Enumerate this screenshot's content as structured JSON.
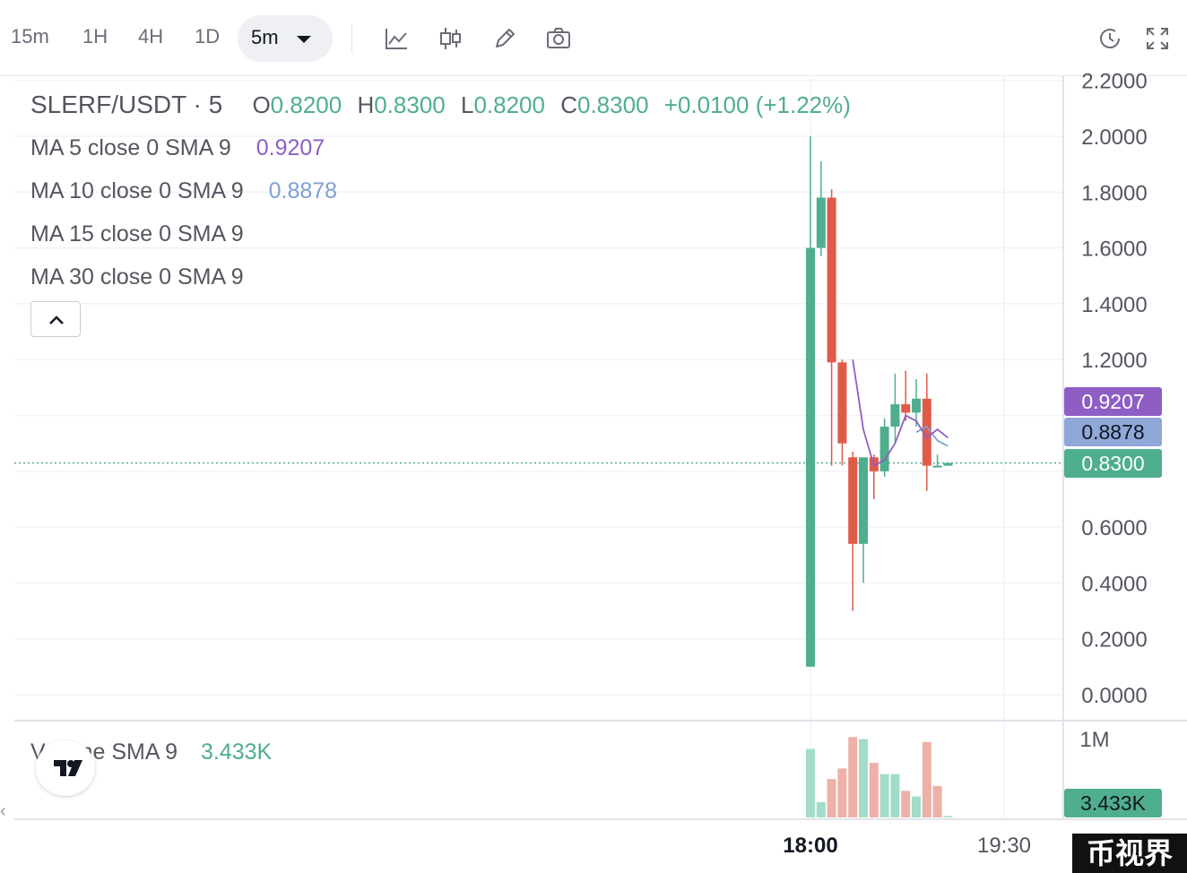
{
  "toolbar": {
    "timeframes": [
      "15m",
      "1H",
      "4H",
      "1D"
    ],
    "active_timeframe": "5m",
    "icons": [
      "line-chart-icon",
      "candles-icon",
      "pencil-icon",
      "camera-icon",
      "clock-icon",
      "fullscreen-icon"
    ]
  },
  "legend": {
    "symbol": "SLERF/USDT · 5",
    "open_label": "O",
    "open": "0.8200",
    "high_label": "H",
    "high": "0.8300",
    "low_label": "L",
    "low": "0.8200",
    "close_label": "C",
    "close": "0.8300",
    "change": "+0.0100 (+1.22%)",
    "ma": [
      {
        "label": "MA 5 close 0 SMA 9",
        "value": "0.9207",
        "color": "#8e5ec5"
      },
      {
        "label": "MA 10 close 0 SMA 9",
        "value": "0.8878",
        "color": "#7e9fd6"
      },
      {
        "label": "MA 15 close 0 SMA 9",
        "value": ""
      },
      {
        "label": "MA 30 close 0 SMA 9",
        "value": ""
      }
    ]
  },
  "volume": {
    "label": "Volume SMA 9",
    "value": "3.433K",
    "axis_label": "1M"
  },
  "price_axis": {
    "ticks": [
      "2.2000",
      "2.0000",
      "1.8000",
      "1.6000",
      "1.4000",
      "1.2000",
      "0.6000",
      "0.4000",
      "0.2000",
      "0.0000"
    ]
  },
  "price_tags": {
    "ma5": "0.9207",
    "ma10": "0.8878",
    "last": "0.8300",
    "volume": "3.433K"
  },
  "time_axis": {
    "ticks": [
      "18:00",
      "19:30"
    ]
  },
  "watermark": "币视界",
  "colors": {
    "up": "#4fae8d",
    "down": "#e05a4a",
    "ma5": "#8e5ec5",
    "ma10": "#7e9fd6",
    "vol_up": "#a3dccb",
    "vol_down": "#eeb1a8"
  },
  "chart_data": {
    "type": "candlestick",
    "interval": "5m",
    "ylim": [
      0,
      2.2
    ],
    "candles": [
      {
        "time": "18:00",
        "open": 0.1,
        "high": 2.0,
        "low": 0.1,
        "close": 1.6
      },
      {
        "open": 1.6,
        "high": 1.91,
        "low": 1.57,
        "close": 1.78
      },
      {
        "open": 1.78,
        "high": 1.81,
        "low": 0.82,
        "close": 1.19
      },
      {
        "open": 1.19,
        "high": 1.2,
        "low": 0.82,
        "close": 0.9
      },
      {
        "open": 0.85,
        "high": 0.87,
        "low": 0.3,
        "close": 0.54
      },
      {
        "open": 0.54,
        "high": 0.84,
        "low": 0.4,
        "close": 0.85
      },
      {
        "open": 0.85,
        "high": 0.86,
        "low": 0.7,
        "close": 0.8
      },
      {
        "open": 0.8,
        "high": 0.99,
        "low": 0.78,
        "close": 0.96
      },
      {
        "open": 0.96,
        "high": 1.15,
        "low": 0.9,
        "close": 1.04
      },
      {
        "open": 1.04,
        "high": 1.16,
        "low": 0.98,
        "close": 1.01
      },
      {
        "open": 1.01,
        "high": 1.13,
        "low": 0.96,
        "close": 1.06
      },
      {
        "open": 1.06,
        "high": 1.15,
        "low": 0.73,
        "close": 0.82
      },
      {
        "open": 0.82,
        "high": 0.86,
        "low": 0.82,
        "close": 0.82
      },
      {
        "open": 0.82,
        "high": 0.83,
        "low": 0.82,
        "close": 0.83
      }
    ],
    "ma5": [
      null,
      null,
      null,
      null,
      1.2,
      0.95,
      0.82,
      0.84,
      0.9,
      1.0,
      0.98,
      0.92,
      0.95,
      0.92
    ],
    "ma10": [
      null,
      null,
      null,
      null,
      null,
      null,
      null,
      null,
      null,
      null,
      0.94,
      0.96,
      0.91,
      0.89
    ],
    "volume": [
      0.98,
      0.22,
      0.55,
      0.7,
      1.15,
      1.12,
      0.78,
      0.62,
      0.62,
      0.38,
      0.3,
      1.08,
      0.45,
      0.02
    ],
    "volume_direction": [
      "up",
      "up",
      "down",
      "down",
      "down",
      "up",
      "down",
      "up",
      "up",
      "down",
      "up",
      "down",
      "down",
      "up"
    ],
    "volume_axis_max": "1M"
  }
}
